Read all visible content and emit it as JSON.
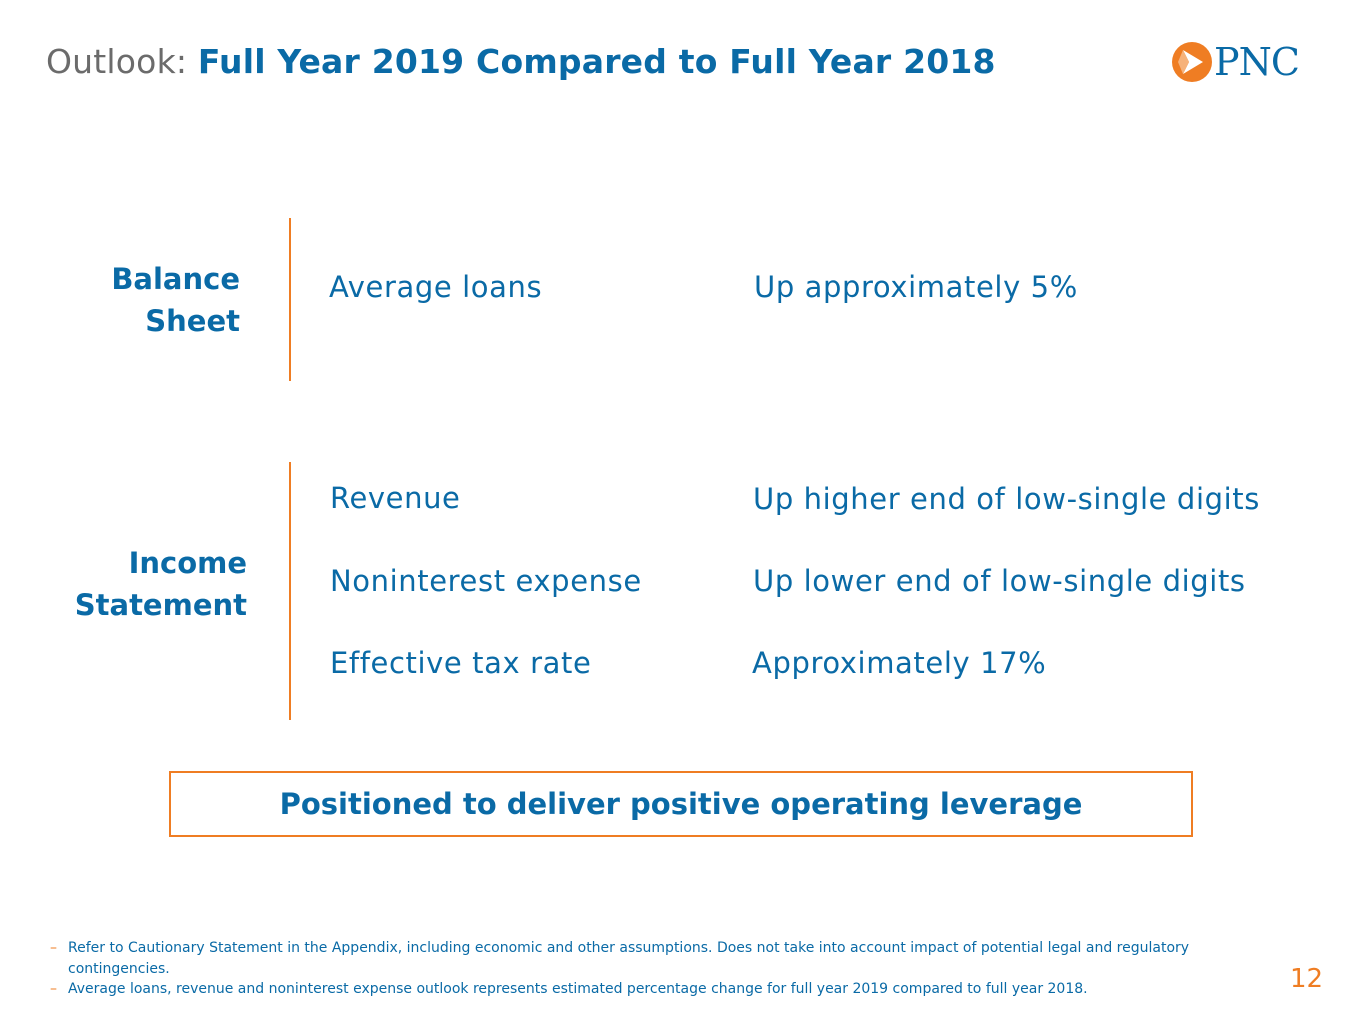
{
  "header": {
    "title_prefix": "Outlook: ",
    "title_main": "Full Year 2019 Compared to Full Year 2018",
    "logo_text": "PNC"
  },
  "balance_sheet": {
    "label_line1": "Balance",
    "label_line2": "Sheet",
    "rows": [
      {
        "metric": "Average loans",
        "value": "Up approximately 5%"
      }
    ]
  },
  "income_statement": {
    "label_line1": "Income",
    "label_line2": "Statement",
    "rows": [
      {
        "metric": "Revenue",
        "value": "Up higher end of low-single digits"
      },
      {
        "metric": "Noninterest expense",
        "value": "Up lower end of low-single digits"
      },
      {
        "metric": "Effective tax rate",
        "value": "Approximately 17%"
      }
    ]
  },
  "callout": "Positioned to deliver positive operating leverage",
  "footnotes": [
    "Refer to Cautionary Statement in the Appendix, including economic and other assumptions. Does not take into account impact of potential legal and regulatory contingencies.",
    "Average loans, revenue and noninterest expense outlook represents estimated percentage change for full year 2019 compared to full year 2018."
  ],
  "footnote_dash": "–",
  "page_number": "12",
  "colors": {
    "primary_blue": "#0a6aa6",
    "accent_orange": "#ef7d23",
    "gray_text": "#6b6b6b"
  }
}
